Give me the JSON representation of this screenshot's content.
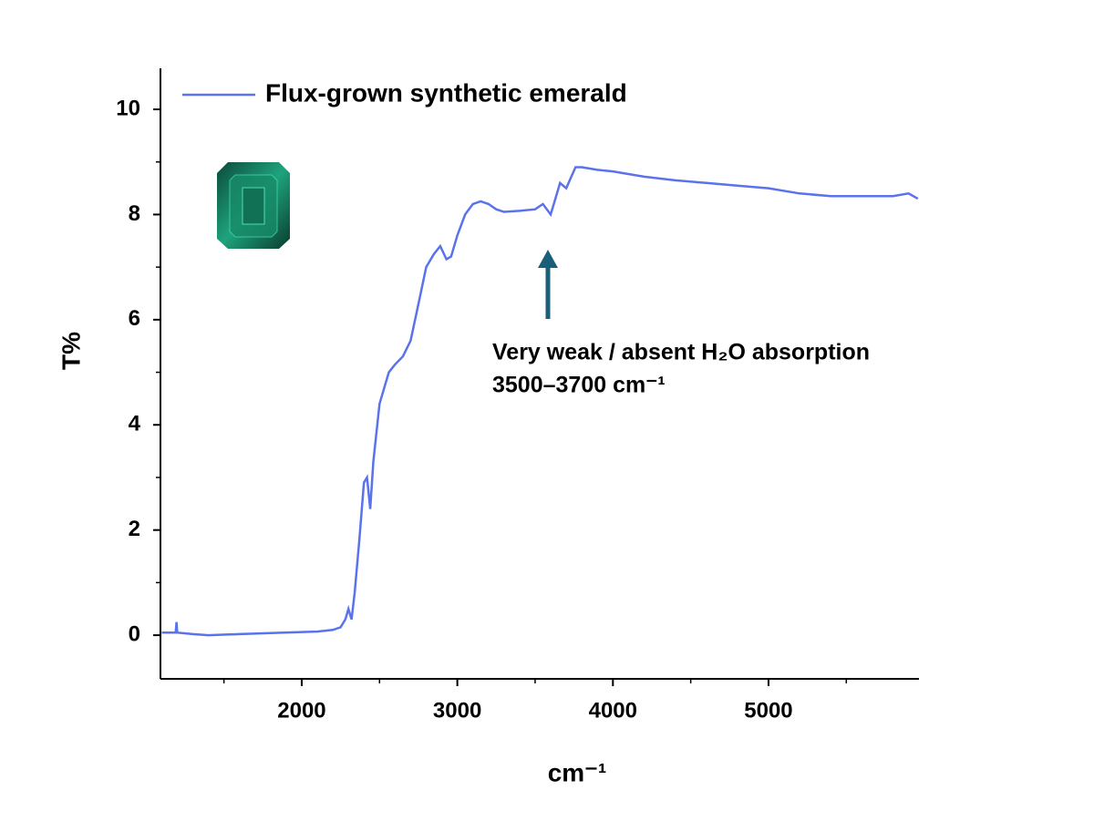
{
  "chart_data": {
    "type": "line",
    "y_label": "T%",
    "x_label": "cm⁻¹",
    "annotation": [
      "Very weak / absent H₂O absorption",
      "3500–3700 cm⁻¹"
    ],
    "x": [
      1100,
      1190,
      1195,
      1200,
      1300,
      1400,
      1600,
      1800,
      2000,
      2100,
      2200,
      2250,
      2280,
      2300,
      2320,
      2340,
      2370,
      2400,
      2420,
      2440,
      2460,
      2500,
      2560,
      2600,
      2650,
      2700,
      2750,
      2800,
      2850,
      2890,
      2930,
      2960,
      3000,
      3050,
      3100,
      3150,
      3200,
      3250,
      3300,
      3400,
      3500,
      3550,
      3600,
      3630,
      3660,
      3700,
      3730,
      3760,
      3800,
      3900,
      4000,
      4200,
      4400,
      4600,
      4800,
      5000,
      5200,
      5400,
      5600,
      5800,
      5900,
      5960
    ],
    "series": [
      {
        "name": "Flux-grown synthetic emerald",
        "color": "#5a73ec",
        "values": [
          0.05,
          0.05,
          0.25,
          0.05,
          0.02,
          0.0,
          0.02,
          0.04,
          0.06,
          0.07,
          0.1,
          0.15,
          0.3,
          0.5,
          0.3,
          0.8,
          1.8,
          2.9,
          3.0,
          2.4,
          3.3,
          4.4,
          5.0,
          5.15,
          5.3,
          5.6,
          6.3,
          7.0,
          7.25,
          7.4,
          7.15,
          7.2,
          7.6,
          8.0,
          8.2,
          8.25,
          8.2,
          8.1,
          8.05,
          8.07,
          8.1,
          8.2,
          8.0,
          8.3,
          8.6,
          8.5,
          8.7,
          8.9,
          8.9,
          8.85,
          8.82,
          8.72,
          8.65,
          8.6,
          8.55,
          8.5,
          8.4,
          8.35,
          8.35,
          8.35,
          8.4,
          8.3
        ]
      }
    ],
    "xlim": [
      1092,
      5967
    ],
    "ylim": [
      -0.83,
      10.78
    ],
    "xticks": [
      2000,
      3000,
      4000,
      5000
    ],
    "xminorticks": [
      1500,
      2500,
      3500,
      4500,
      5500
    ],
    "yticks": [
      0,
      2,
      4,
      6,
      8,
      10
    ],
    "yminorticks": [
      1,
      3,
      5,
      7,
      9
    ],
    "legend": "top-left"
  }
}
